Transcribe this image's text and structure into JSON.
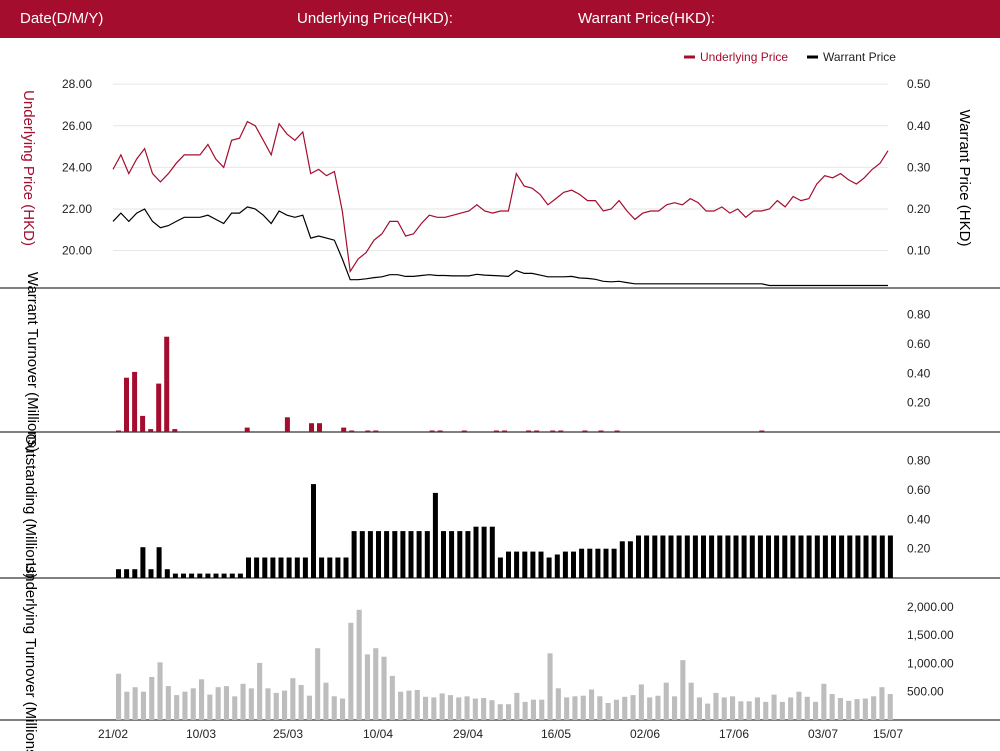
{
  "header": {
    "date_label": "Date(D/M/Y)",
    "underlying_label": "Underlying Price(HKD):",
    "warrant_label": "Warrant Price(HKD):"
  },
  "colors": {
    "brand": "#a50d2e",
    "underlying": "#a50d2e",
    "warrant": "#000000",
    "outstanding": "#000000",
    "turnover_underlying": "#bdbdbd"
  },
  "legend": {
    "underlying": "Underlying Price",
    "warrant": "Warrant Price"
  },
  "x_ticks": [
    "21/02",
    "10/03",
    "25/03",
    "10/04",
    "29/04",
    "16/05",
    "02/06",
    "17/06",
    "03/07",
    "15/07"
  ],
  "chart_data": [
    {
      "type": "line",
      "title": "",
      "ylabel": "Underlying Price (HKD)",
      "y2label": "Warrant Price (HKD)",
      "ylim": [
        18.2,
        28.2
      ],
      "y2lim": [
        0.01,
        0.51
      ],
      "yticks": [
        "28.00",
        "26.00",
        "24.00",
        "22.00",
        "20.00"
      ],
      "y2ticks": [
        "0.50",
        "0.40",
        "0.30",
        "0.20",
        "0.10"
      ],
      "series": [
        {
          "name": "Underlying Price",
          "axis": "left",
          "values": [
            23.9,
            24.6,
            23.7,
            24.4,
            24.9,
            23.7,
            23.3,
            23.7,
            24.2,
            24.6,
            24.6,
            24.6,
            25.1,
            24.4,
            24.0,
            25.3,
            25.4,
            26.2,
            26.0,
            25.3,
            24.6,
            26.1,
            25.6,
            25.3,
            25.7,
            23.7,
            23.9,
            23.6,
            23.8,
            21.9,
            19.0,
            19.6,
            19.9,
            20.5,
            20.8,
            21.4,
            21.4,
            20.7,
            20.8,
            21.3,
            21.7,
            21.6,
            21.6,
            21.7,
            21.8,
            21.9,
            22.2,
            21.9,
            21.8,
            21.9,
            21.9,
            23.7,
            23.1,
            23.0,
            22.7,
            22.2,
            22.5,
            22.8,
            22.9,
            22.7,
            22.4,
            22.4,
            21.9,
            22.0,
            22.4,
            21.9,
            21.5,
            21.8,
            21.9,
            21.9,
            22.2,
            22.3,
            22.2,
            22.5,
            22.3,
            21.9,
            21.9,
            22.1,
            21.8,
            22.0,
            21.6,
            21.9,
            21.9,
            22.0,
            22.4,
            22.1,
            22.6,
            22.4,
            22.5,
            23.2,
            23.6,
            23.5,
            23.7,
            23.4,
            23.2,
            23.5,
            23.9,
            24.2,
            24.8
          ]
        },
        {
          "name": "Warrant Price",
          "axis": "right",
          "values": [
            0.17,
            0.19,
            0.17,
            0.19,
            0.2,
            0.17,
            0.155,
            0.16,
            0.17,
            0.18,
            0.18,
            0.18,
            0.185,
            0.175,
            0.165,
            0.19,
            0.19,
            0.205,
            0.2,
            0.185,
            0.165,
            0.195,
            0.185,
            0.18,
            0.185,
            0.13,
            0.135,
            0.13,
            0.125,
            0.08,
            0.03,
            0.03,
            0.032,
            0.035,
            0.037,
            0.042,
            0.042,
            0.038,
            0.038,
            0.04,
            0.042,
            0.04,
            0.04,
            0.039,
            0.039,
            0.039,
            0.043,
            0.041,
            0.04,
            0.039,
            0.038,
            0.052,
            0.045,
            0.045,
            0.041,
            0.037,
            0.037,
            0.037,
            0.038,
            0.034,
            0.033,
            0.031,
            0.026,
            0.025,
            0.026,
            0.023,
            0.02,
            0.02,
            0.02,
            0.02,
            0.02,
            0.02,
            0.02,
            0.02,
            0.02,
            0.02,
            0.02,
            0.02,
            0.02,
            0.02,
            0.02,
            0.02,
            0.02,
            0.016,
            0.016,
            0.016,
            0.016,
            0.016,
            0.016,
            0.016,
            0.016,
            0.016,
            0.016,
            0.016,
            0.016,
            0.016,
            0.016,
            0.016,
            0.016
          ]
        }
      ]
    },
    {
      "type": "bar",
      "ylabel": "Warrant Turnover (Millions)",
      "ylim": [
        0,
        0.9
      ],
      "yticks": [
        "0.80",
        "0.60",
        "0.40",
        "0.20"
      ],
      "series": [
        {
          "name": "Warrant Turnover",
          "values": [
            0.01,
            0.37,
            0.41,
            0.11,
            0.02,
            0.33,
            0.65,
            0.02,
            0,
            0,
            0,
            0,
            0,
            0,
            0,
            0,
            0.03,
            0,
            0,
            0,
            0,
            0.1,
            0,
            0,
            0.06,
            0.06,
            0,
            0,
            0.03,
            0.01,
            0,
            0.01,
            0.01,
            0,
            0,
            0,
            0,
            0,
            0,
            0.01,
            0.01,
            0,
            0,
            0.01,
            0,
            0,
            0,
            0.01,
            0.01,
            0,
            0,
            0.01,
            0.01,
            0,
            0.01,
            0.01,
            0,
            0,
            0.01,
            0,
            0.01,
            0,
            0.01,
            0,
            0,
            0,
            0,
            0,
            0,
            0,
            0,
            0,
            0,
            0,
            0,
            0,
            0,
            0,
            0,
            0,
            0.01,
            0,
            0,
            0,
            0,
            0,
            0,
            0,
            0,
            0,
            0,
            0,
            0,
            0,
            0,
            0,
            0
          ]
        }
      ]
    },
    {
      "type": "bar",
      "ylabel": "Outstanding (Millions)",
      "ylim": [
        0,
        0.9
      ],
      "yticks": [
        "0.80",
        "0.60",
        "0.40",
        "0.20"
      ],
      "series": [
        {
          "name": "Outstanding",
          "values": [
            0.06,
            0.06,
            0.06,
            0.21,
            0.06,
            0.21,
            0.06,
            0.03,
            0.03,
            0.03,
            0.03,
            0.03,
            0.03,
            0.03,
            0.03,
            0.03,
            0.14,
            0.14,
            0.14,
            0.14,
            0.14,
            0.14,
            0.14,
            0.14,
            0.64,
            0.14,
            0.14,
            0.14,
            0.14,
            0.32,
            0.32,
            0.32,
            0.32,
            0.32,
            0.32,
            0.32,
            0.32,
            0.32,
            0.32,
            0.58,
            0.32,
            0.32,
            0.32,
            0.32,
            0.35,
            0.35,
            0.35,
            0.14,
            0.18,
            0.18,
            0.18,
            0.18,
            0.18,
            0.14,
            0.16,
            0.18,
            0.18,
            0.2,
            0.2,
            0.2,
            0.2,
            0.2,
            0.25,
            0.25,
            0.29,
            0.29,
            0.29,
            0.29,
            0.29,
            0.29,
            0.29,
            0.29,
            0.29,
            0.29,
            0.29,
            0.29,
            0.29,
            0.29,
            0.29,
            0.29,
            0.29,
            0.29,
            0.29,
            0.29,
            0.29,
            0.29,
            0.29,
            0.29,
            0.29,
            0.29,
            0.29,
            0.29,
            0.29,
            0.29,
            0.29,
            0.29
          ]
        }
      ]
    },
    {
      "type": "bar",
      "ylabel": "Underlying Turnover (Millions)",
      "ylim": [
        0,
        2300
      ],
      "yticks": [
        "2,000.00",
        "1,500.00",
        "1,000.00",
        "500.00"
      ],
      "series": [
        {
          "name": "Underlying Turnover",
          "values": [
            820,
            500,
            580,
            500,
            760,
            1020,
            600,
            440,
            500,
            560,
            720,
            450,
            580,
            600,
            420,
            640,
            560,
            1010,
            560,
            480,
            520,
            740,
            620,
            430,
            1270,
            660,
            420,
            380,
            1720,
            1950,
            1160,
            1270,
            1120,
            780,
            500,
            520,
            530,
            410,
            400,
            470,
            440,
            400,
            420,
            380,
            390,
            350,
            280,
            280,
            480,
            320,
            360,
            360,
            1180,
            560,
            400,
            420,
            430,
            540,
            420,
            300,
            360,
            410,
            440,
            630,
            400,
            430,
            660,
            420,
            1060,
            660,
            400,
            290,
            480,
            400,
            420,
            330,
            330,
            400,
            320,
            450,
            320,
            400,
            500,
            410,
            320,
            640,
            460,
            390,
            340,
            370,
            380,
            420,
            580,
            460
          ]
        }
      ]
    }
  ]
}
